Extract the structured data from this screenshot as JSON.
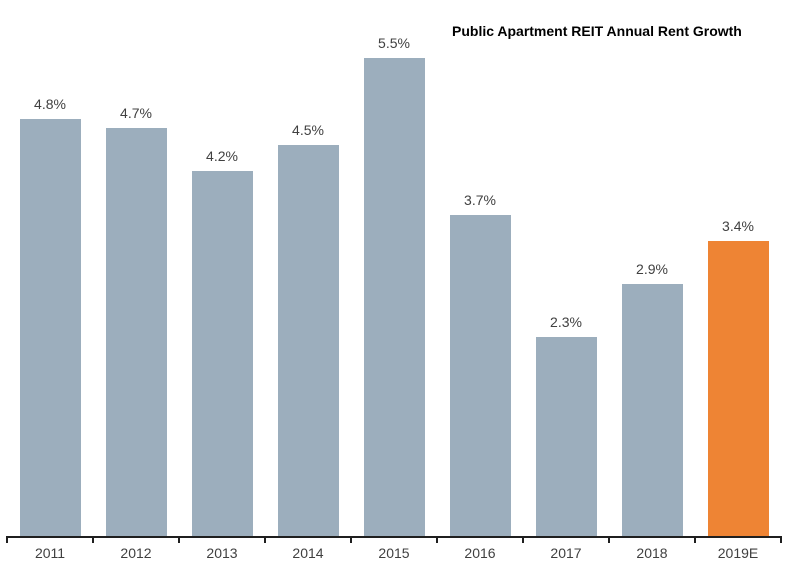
{
  "chart_data": {
    "type": "bar",
    "title": "Public Apartment REIT Annual Rent Growth",
    "categories": [
      "2011",
      "2012",
      "2013",
      "2014",
      "2015",
      "2016",
      "2017",
      "2018",
      "2019E"
    ],
    "values": [
      4.8,
      4.7,
      4.2,
      4.5,
      5.5,
      3.7,
      2.3,
      2.9,
      3.4
    ],
    "labels": [
      "4.8%",
      "4.7%",
      "4.2%",
      "4.5%",
      "5.5%",
      "3.7%",
      "2.3%",
      "2.9%",
      "3.4%"
    ],
    "xlabel": "",
    "ylabel": "",
    "ylim": [
      0,
      5.5
    ],
    "grid": false,
    "legend": false,
    "y_axis_visible": false,
    "bar_color": "#9CAEBD",
    "highlight_color": "#EE8434",
    "highlight_index": 8,
    "label_color": "#404040",
    "axis_color": "#1f1f1f"
  }
}
